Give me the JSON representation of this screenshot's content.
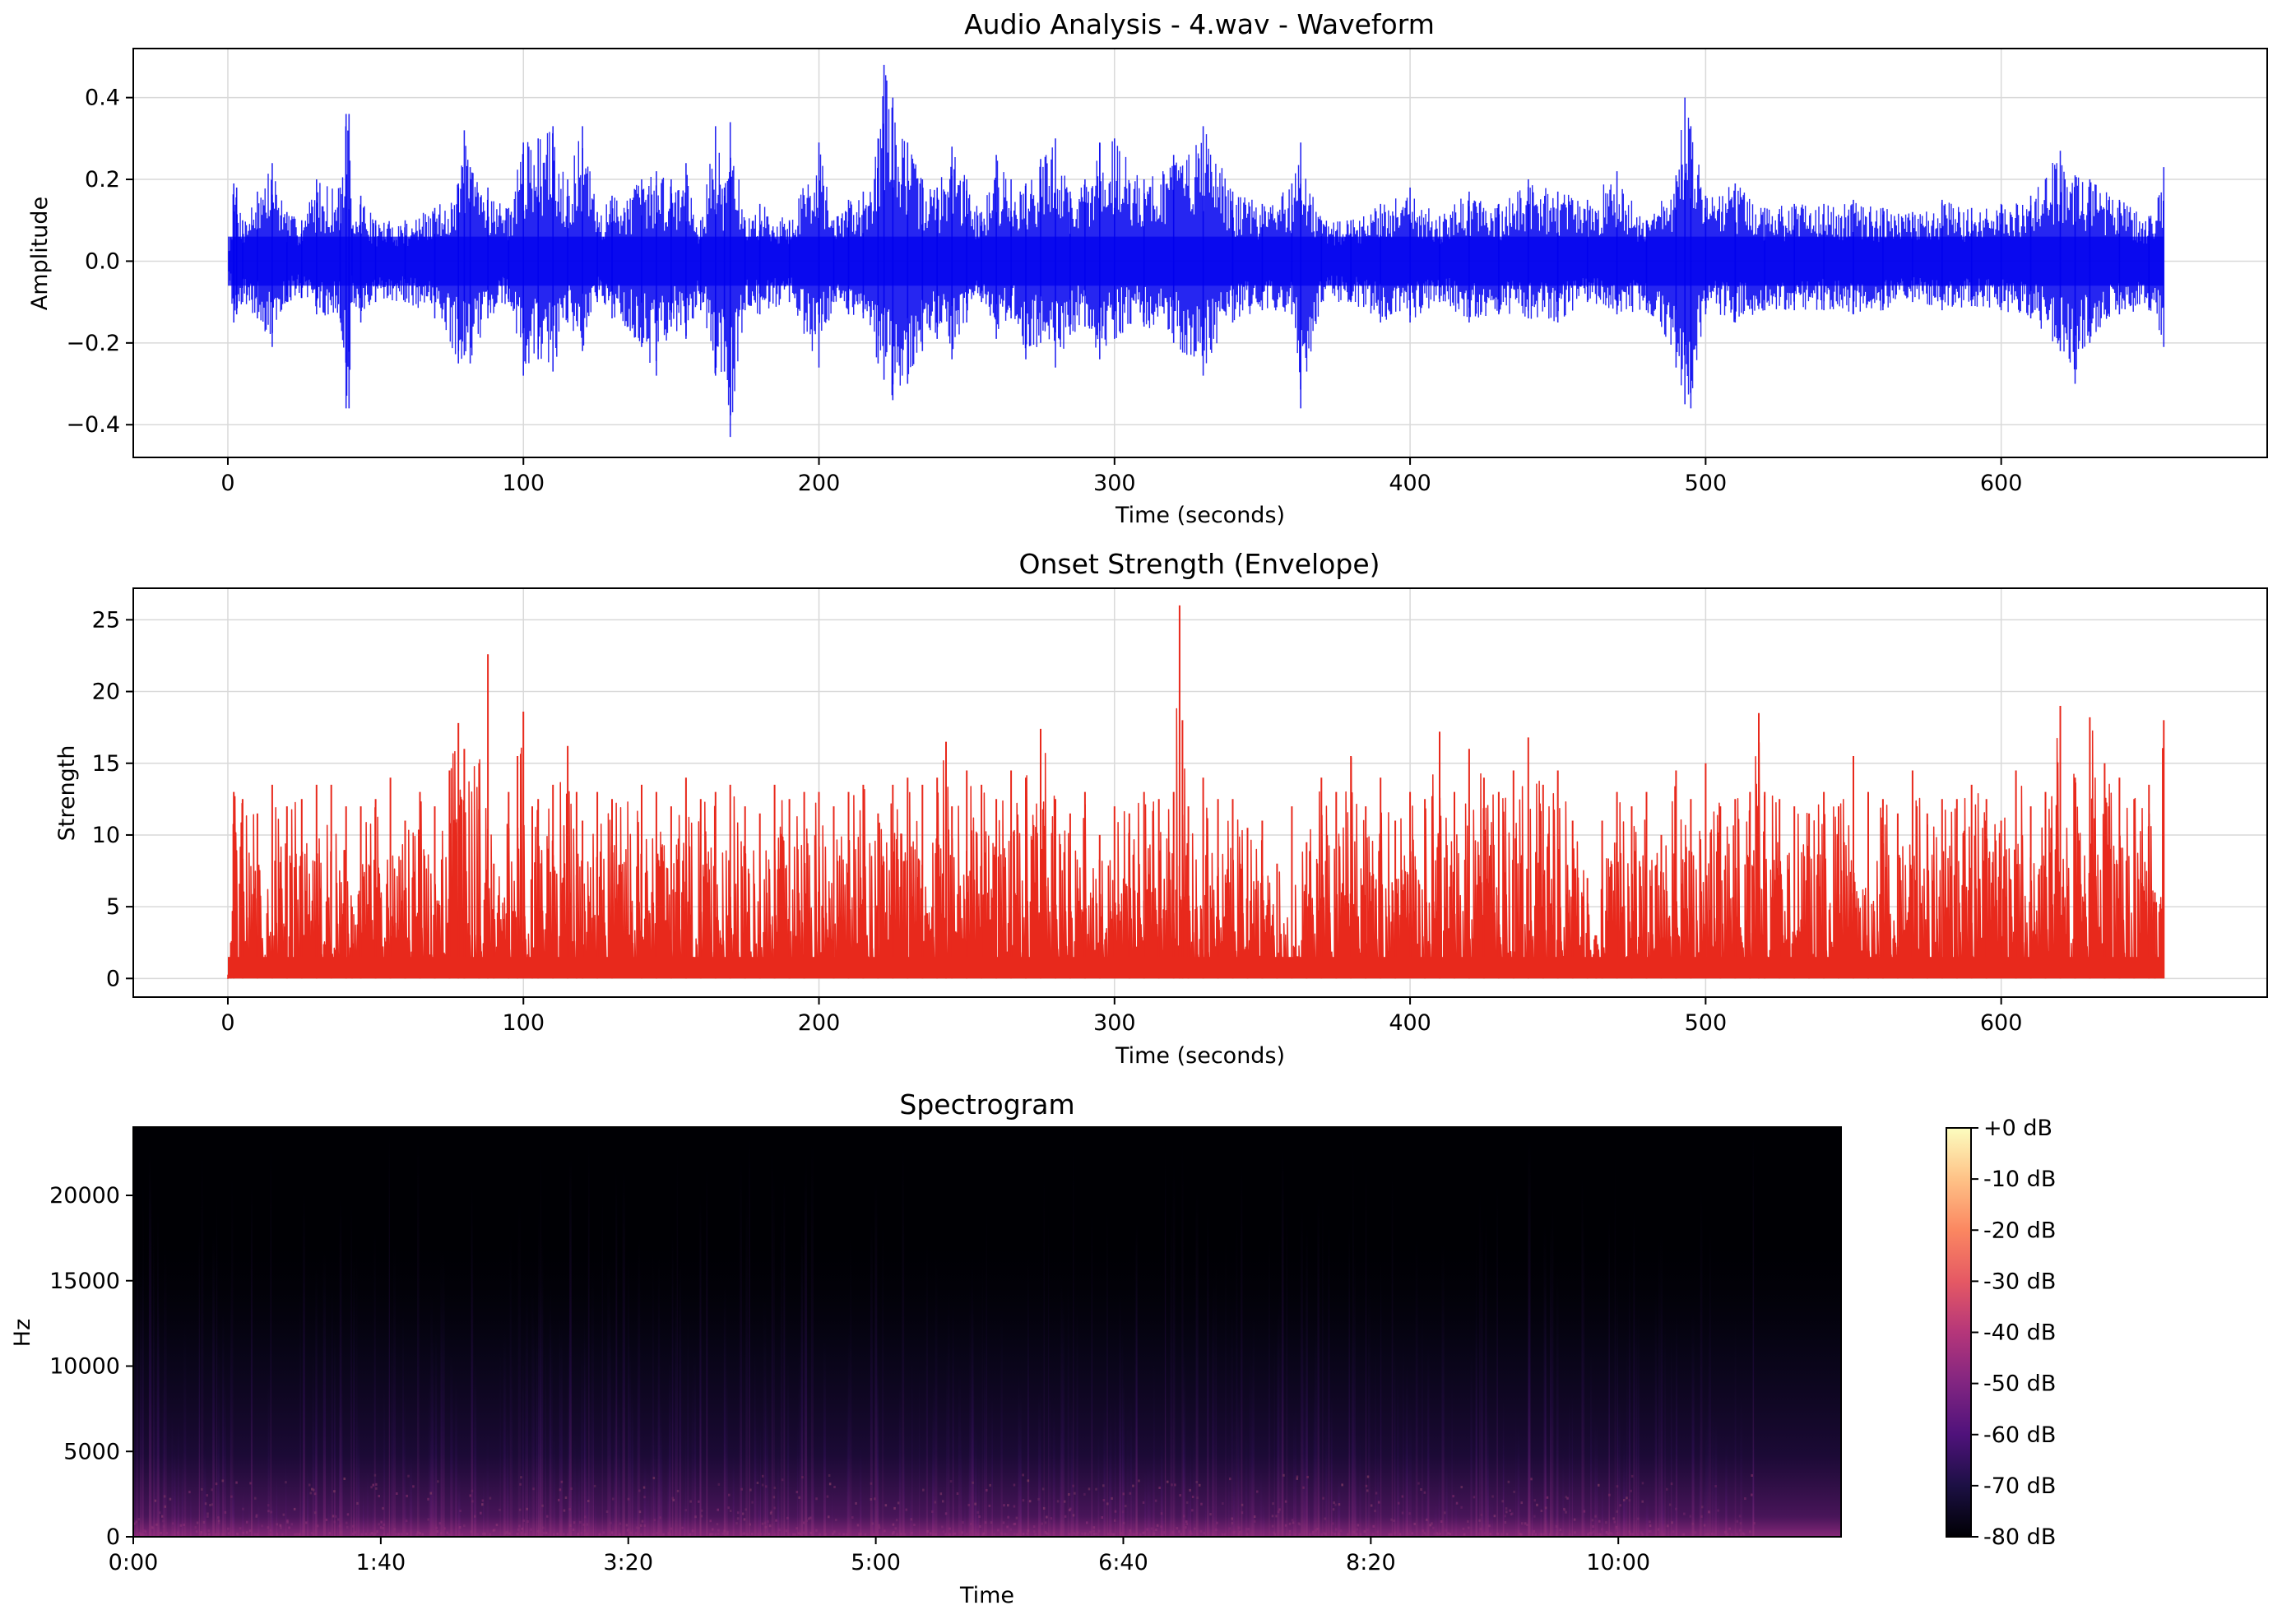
{
  "chart_data": [
    {
      "type": "line",
      "title": "Audio Analysis - 4.wav - Waveform",
      "xlabel": "Time (seconds)",
      "ylabel": "Amplitude",
      "xlim": [
        -32,
        690
      ],
      "ylim": [
        -0.48,
        0.52
      ],
      "grid": true,
      "x_ticks": [
        0,
        100,
        200,
        300,
        400,
        500,
        600
      ],
      "x_tick_labels": [
        "0",
        "100",
        "200",
        "300",
        "400",
        "500",
        "600"
      ],
      "y_ticks": [
        -0.4,
        -0.2,
        0.0,
        0.2,
        0.4
      ],
      "y_tick_labels": [
        "−0.4",
        "−0.2",
        "0.0",
        "0.2",
        "0.4"
      ],
      "color": "#0000ee",
      "series": [
        {
          "x": [
            0,
            2,
            3,
            5,
            10,
            15,
            20,
            25,
            30,
            38,
            40,
            41,
            42,
            45,
            50,
            60,
            70,
            78,
            80,
            82,
            88,
            95,
            100,
            105,
            110,
            115,
            120,
            125,
            130,
            140,
            145,
            150,
            155,
            160,
            165,
            168,
            170,
            175,
            180,
            190,
            200,
            205,
            210,
            215,
            220,
            222,
            225,
            230,
            235,
            240,
            245,
            250,
            255,
            260,
            265,
            270,
            275,
            280,
            285,
            290,
            295,
            300,
            310,
            320,
            330,
            340,
            350,
            360,
            363,
            370,
            380,
            390,
            400,
            410,
            420,
            430,
            440,
            450,
            460,
            470,
            480,
            490,
            493,
            495,
            500,
            510,
            520,
            530,
            540,
            550,
            560,
            570,
            580,
            590,
            600,
            610,
            620,
            625,
            630,
            640,
            650,
            655
          ],
          "y_max": [
            0.0,
            0.19,
            0.18,
            0.1,
            0.17,
            0.24,
            0.12,
            0.1,
            0.2,
            0.18,
            0.36,
            0.36,
            0.08,
            0.16,
            0.1,
            0.1,
            0.13,
            0.19,
            0.32,
            0.23,
            0.18,
            0.13,
            0.29,
            0.3,
            0.33,
            0.2,
            0.33,
            0.12,
            0.16,
            0.2,
            0.22,
            0.2,
            0.24,
            0.1,
            0.33,
            0.18,
            0.34,
            0.1,
            0.14,
            0.1,
            0.29,
            0.1,
            0.15,
            0.17,
            0.3,
            0.48,
            0.4,
            0.29,
            0.2,
            0.18,
            0.28,
            0.2,
            0.12,
            0.26,
            0.2,
            0.19,
            0.25,
            0.3,
            0.17,
            0.2,
            0.29,
            0.3,
            0.2,
            0.26,
            0.33,
            0.17,
            0.14,
            0.19,
            0.29,
            0.1,
            0.1,
            0.14,
            0.18,
            0.11,
            0.17,
            0.14,
            0.2,
            0.17,
            0.15,
            0.22,
            0.1,
            0.21,
            0.4,
            0.33,
            0.16,
            0.19,
            0.13,
            0.14,
            0.14,
            0.15,
            0.13,
            0.12,
            0.15,
            0.13,
            0.14,
            0.16,
            0.27,
            0.21,
            0.2,
            0.15,
            0.11,
            0.23
          ],
          "y_min": [
            0.0,
            -0.15,
            -0.13,
            -0.1,
            -0.14,
            -0.21,
            -0.1,
            -0.09,
            -0.13,
            -0.14,
            -0.36,
            -0.36,
            -0.1,
            -0.15,
            -0.1,
            -0.1,
            -0.14,
            -0.25,
            -0.23,
            -0.25,
            -0.14,
            -0.1,
            -0.28,
            -0.24,
            -0.27,
            -0.15,
            -0.22,
            -0.1,
            -0.14,
            -0.21,
            -0.28,
            -0.16,
            -0.19,
            -0.12,
            -0.28,
            -0.27,
            -0.43,
            -0.12,
            -0.13,
            -0.1,
            -0.26,
            -0.1,
            -0.13,
            -0.14,
            -0.25,
            -0.29,
            -0.34,
            -0.3,
            -0.22,
            -0.19,
            -0.24,
            -0.15,
            -0.1,
            -0.19,
            -0.14,
            -0.24,
            -0.2,
            -0.26,
            -0.18,
            -0.16,
            -0.24,
            -0.19,
            -0.16,
            -0.2,
            -0.28,
            -0.15,
            -0.12,
            -0.13,
            -0.36,
            -0.1,
            -0.1,
            -0.15,
            -0.15,
            -0.1,
            -0.15,
            -0.13,
            -0.14,
            -0.15,
            -0.1,
            -0.13,
            -0.12,
            -0.26,
            -0.35,
            -0.36,
            -0.13,
            -0.15,
            -0.12,
            -0.12,
            -0.12,
            -0.13,
            -0.12,
            -0.1,
            -0.12,
            -0.11,
            -0.12,
            -0.14,
            -0.22,
            -0.3,
            -0.2,
            -0.13,
            -0.12,
            -0.21
          ]
        }
      ]
    },
    {
      "type": "line",
      "title": "Onset Strength (Envelope)",
      "xlabel": "Time (seconds)",
      "ylabel": "Strength",
      "xlim": [
        -32,
        690
      ],
      "ylim": [
        -1.3,
        27.2
      ],
      "grid": true,
      "x_ticks": [
        0,
        100,
        200,
        300,
        400,
        500,
        600
      ],
      "x_tick_labels": [
        "0",
        "100",
        "200",
        "300",
        "400",
        "500",
        "600"
      ],
      "y_ticks": [
        0,
        5,
        10,
        15,
        20,
        25
      ],
      "y_tick_labels": [
        "0",
        "5",
        "10",
        "15",
        "20",
        "25"
      ],
      "color": "#e8291c",
      "series": [
        {
          "x": [
            0,
            1,
            2,
            5,
            10,
            15,
            20,
            25,
            30,
            35,
            40,
            42,
            45,
            50,
            55,
            60,
            65,
            70,
            75,
            78,
            80,
            85,
            88,
            90,
            95,
            98,
            100,
            103,
            105,
            110,
            115,
            118,
            120,
            125,
            130,
            140,
            145,
            150,
            155,
            160,
            165,
            170,
            175,
            180,
            185,
            190,
            195,
            200,
            205,
            210,
            215,
            220,
            225,
            230,
            235,
            240,
            243,
            245,
            250,
            255,
            260,
            265,
            270,
            275,
            280,
            285,
            290,
            295,
            300,
            305,
            310,
            315,
            320,
            322,
            323,
            325,
            330,
            335,
            340,
            345,
            350,
            355,
            360,
            365,
            370,
            375,
            380,
            385,
            390,
            395,
            400,
            405,
            410,
            415,
            420,
            425,
            430,
            435,
            440,
            445,
            450,
            455,
            460,
            463,
            465,
            470,
            475,
            480,
            485,
            490,
            495,
            500,
            505,
            510,
            515,
            518,
            520,
            525,
            530,
            535,
            540,
            545,
            550,
            555,
            560,
            565,
            570,
            575,
            580,
            585,
            590,
            595,
            600,
            605,
            610,
            615,
            620,
            625,
            630,
            635,
            640,
            645,
            650,
            652,
            655
          ],
          "y_max": [
            0.0,
            2.5,
            13.0,
            12.5,
            11.5,
            13.5,
            12.0,
            12.5,
            13.5,
            13.5,
            12.0,
            5.0,
            12.0,
            12.5,
            14.0,
            11.0,
            13.0,
            12.0,
            14.5,
            17.8,
            16.0,
            15.0,
            22.6,
            8.0,
            13.0,
            15.5,
            18.6,
            12.0,
            12.5,
            13.5,
            16.2,
            13.0,
            11.0,
            13.0,
            12.5,
            13.5,
            13.0,
            12.0,
            14.0,
            12.5,
            13.0,
            13.5,
            12.0,
            11.5,
            13.5,
            12.5,
            13.0,
            13.0,
            12.0,
            13.0,
            13.5,
            11.5,
            13.5,
            14.0,
            13.5,
            14.0,
            16.5,
            12.0,
            14.5,
            13.5,
            12.5,
            14.5,
            14.0,
            17.4,
            12.5,
            11.5,
            13.0,
            10.0,
            12.0,
            11.5,
            13.0,
            12.5,
            13.0,
            26.0,
            18.0,
            12.0,
            14.0,
            12.5,
            12.5,
            10.5,
            11.0,
            8.0,
            12.0,
            9.5,
            14.0,
            13.0,
            15.5,
            12.0,
            14.0,
            11.0,
            13.0,
            12.5,
            17.2,
            13.0,
            16.0,
            14.0,
            13.0,
            14.5,
            16.8,
            13.5,
            14.5,
            11.0,
            7.0,
            3.0,
            11.0,
            13.0,
            12.0,
            13.0,
            10.0,
            14.5,
            12.5,
            15.0,
            12.0,
            12.5,
            13.0,
            18.5,
            13.0,
            12.5,
            12.0,
            11.5,
            13.0,
            12.0,
            15.5,
            13.0,
            12.5,
            11.5,
            14.5,
            11.5,
            12.5,
            12.5,
            13.5,
            12.5,
            11.0,
            14.5,
            12.0,
            13.0,
            19.0,
            14.0,
            18.2,
            15.0,
            14.0,
            12.5,
            13.5,
            6.0,
            18.0
          ]
        }
      ]
    },
    {
      "type": "heatmap",
      "title": "Spectrogram",
      "xlabel": "Time",
      "ylabel": "Hz",
      "xlim": [
        0,
        690
      ],
      "ylim": [
        0,
        24000
      ],
      "x_ticks": [
        0,
        100,
        200,
        300,
        400,
        500,
        600
      ],
      "x_tick_labels": [
        "0:00",
        "1:40",
        "3:20",
        "5:00",
        "6:40",
        "8:20",
        "10:00"
      ],
      "y_ticks": [
        0,
        5000,
        10000,
        15000,
        20000
      ],
      "y_tick_labels": [
        "0",
        "5000",
        "10000",
        "15000",
        "20000"
      ],
      "colormap": "magma",
      "colorbar": {
        "ticks": [
          0,
          -10,
          -20,
          -30,
          -40,
          -50,
          -60,
          -70,
          -80
        ],
        "labels": [
          "+0 dB",
          "-10 dB",
          "-20 dB",
          "-30 dB",
          "-40 dB",
          "-50 dB",
          "-60 dB",
          "-70 dB",
          "-80 dB"
        ],
        "range": [
          -80,
          0
        ]
      },
      "colors": [
        "#000004",
        "#1c1044",
        "#4f127b",
        "#812581",
        "#b5367a",
        "#e55964",
        "#fb8761",
        "#fec287",
        "#fcfdbf"
      ]
    }
  ]
}
